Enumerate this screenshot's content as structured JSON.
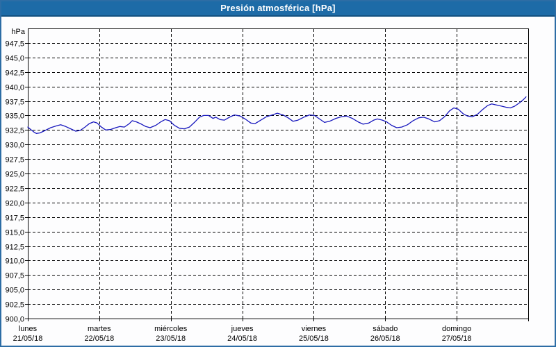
{
  "window": {
    "title": "Presión atmosférica [hPa]"
  },
  "colors": {
    "titlebar": "#1d6ba7",
    "titlebar_edge": "#12507f",
    "window_border": "#2d6da5",
    "background": "#fdfdfe",
    "axis": "#000000",
    "grid": "#000000",
    "line": "#1717bd"
  },
  "chart_data": {
    "type": "line",
    "title": "Presión atmosférica [hPa]",
    "grid": {
      "style": "dashed",
      "color": "#000000"
    },
    "legend": "none",
    "y_axis": {
      "unit": "hPa",
      "min": 900,
      "max": 950,
      "tick_step": 2.5,
      "ticks": [
        {
          "value": 947.5,
          "label": "947,5"
        },
        {
          "value": 945.0,
          "label": "945,0"
        },
        {
          "value": 942.5,
          "label": "942,5"
        },
        {
          "value": 940.0,
          "label": "940,0"
        },
        {
          "value": 937.5,
          "label": "937,5"
        },
        {
          "value": 935.0,
          "label": "935,0"
        },
        {
          "value": 932.5,
          "label": "932,5"
        },
        {
          "value": 930.0,
          "label": "930,0"
        },
        {
          "value": 927.5,
          "label": "927,5"
        },
        {
          "value": 925.0,
          "label": "925,0"
        },
        {
          "value": 922.5,
          "label": "922,5"
        },
        {
          "value": 920.0,
          "label": "920,0"
        },
        {
          "value": 917.5,
          "label": "917,5"
        },
        {
          "value": 915.0,
          "label": "915,0"
        },
        {
          "value": 912.5,
          "label": "912,5"
        },
        {
          "value": 910.0,
          "label": "910,0"
        },
        {
          "value": 907.5,
          "label": "907,5"
        },
        {
          "value": 905.0,
          "label": "905,0"
        },
        {
          "value": 902.5,
          "label": "902,5"
        },
        {
          "value": 900.0,
          "label": "900,0"
        }
      ]
    },
    "x_axis": {
      "span_days": 7,
      "days": [
        {
          "name": "lunes",
          "date": "21/05/18"
        },
        {
          "name": "martes",
          "date": "22/05/18"
        },
        {
          "name": "miércoles",
          "date": "23/05/18"
        },
        {
          "name": "jueves",
          "date": "24/05/18"
        },
        {
          "name": "viernes",
          "date": "25/05/18"
        },
        {
          "name": "sábado",
          "date": "26/05/18"
        },
        {
          "name": "domingo",
          "date": "27/05/18"
        }
      ]
    },
    "series": [
      {
        "name": "Presión atmosférica",
        "color": "#1717bd",
        "points": [
          [
            0.0,
            933.0
          ],
          [
            0.04,
            932.6
          ],
          [
            0.09,
            932.1
          ],
          [
            0.12,
            931.9
          ],
          [
            0.17,
            932.0
          ],
          [
            0.24,
            932.4
          ],
          [
            0.32,
            932.9
          ],
          [
            0.4,
            933.2
          ],
          [
            0.46,
            933.4
          ],
          [
            0.53,
            933.1
          ],
          [
            0.6,
            932.7
          ],
          [
            0.67,
            932.3
          ],
          [
            0.73,
            932.4
          ],
          [
            0.8,
            933.0
          ],
          [
            0.86,
            933.6
          ],
          [
            0.92,
            933.9
          ],
          [
            0.97,
            933.7
          ],
          [
            1.03,
            933.0
          ],
          [
            1.09,
            932.5
          ],
          [
            1.16,
            932.6
          ],
          [
            1.23,
            932.9
          ],
          [
            1.29,
            933.1
          ],
          [
            1.35,
            933.0
          ],
          [
            1.42,
            933.6
          ],
          [
            1.46,
            934.1
          ],
          [
            1.52,
            933.9
          ],
          [
            1.59,
            933.5
          ],
          [
            1.65,
            933.1
          ],
          [
            1.71,
            932.9
          ],
          [
            1.79,
            933.3
          ],
          [
            1.86,
            933.9
          ],
          [
            1.92,
            934.3
          ],
          [
            1.98,
            934.1
          ],
          [
            2.05,
            933.3
          ],
          [
            2.12,
            932.8
          ],
          [
            2.19,
            932.7
          ],
          [
            2.26,
            933.0
          ],
          [
            2.33,
            933.8
          ],
          [
            2.4,
            934.7
          ],
          [
            2.46,
            935.0
          ],
          [
            2.53,
            935.0
          ],
          [
            2.59,
            934.5
          ],
          [
            2.63,
            934.7
          ],
          [
            2.69,
            934.3
          ],
          [
            2.75,
            934.2
          ],
          [
            2.82,
            934.7
          ],
          [
            2.89,
            935.1
          ],
          [
            2.97,
            934.9
          ],
          [
            3.04,
            934.4
          ],
          [
            3.12,
            933.7
          ],
          [
            3.18,
            933.6
          ],
          [
            3.26,
            934.2
          ],
          [
            3.34,
            934.8
          ],
          [
            3.42,
            935.1
          ],
          [
            3.49,
            935.4
          ],
          [
            3.57,
            935.1
          ],
          [
            3.64,
            934.6
          ],
          [
            3.71,
            934.0
          ],
          [
            3.78,
            934.2
          ],
          [
            3.86,
            934.7
          ],
          [
            3.94,
            935.1
          ],
          [
            4.01,
            935.0
          ],
          [
            4.08,
            934.4
          ],
          [
            4.15,
            933.8
          ],
          [
            4.22,
            934.0
          ],
          [
            4.31,
            934.5
          ],
          [
            4.39,
            934.8
          ],
          [
            4.46,
            934.9
          ],
          [
            4.54,
            934.5
          ],
          [
            4.62,
            933.9
          ],
          [
            4.69,
            933.5
          ],
          [
            4.77,
            933.7
          ],
          [
            4.84,
            934.2
          ],
          [
            4.89,
            934.4
          ],
          [
            4.96,
            934.2
          ],
          [
            5.02,
            933.9
          ],
          [
            5.09,
            933.3
          ],
          [
            5.16,
            932.9
          ],
          [
            5.23,
            933.0
          ],
          [
            5.31,
            933.4
          ],
          [
            5.39,
            934.1
          ],
          [
            5.47,
            934.6
          ],
          [
            5.54,
            934.7
          ],
          [
            5.61,
            934.4
          ],
          [
            5.69,
            933.9
          ],
          [
            5.76,
            934.1
          ],
          [
            5.83,
            934.8
          ],
          [
            5.9,
            935.8
          ],
          [
            5.96,
            936.3
          ],
          [
            6.02,
            936.1
          ],
          [
            6.09,
            935.3
          ],
          [
            6.15,
            934.9
          ],
          [
            6.22,
            934.8
          ],
          [
            6.29,
            935.2
          ],
          [
            6.36,
            936.0
          ],
          [
            6.43,
            936.7
          ],
          [
            6.49,
            937.0
          ],
          [
            6.56,
            936.8
          ],
          [
            6.63,
            936.6
          ],
          [
            6.7,
            936.4
          ],
          [
            6.75,
            936.3
          ],
          [
            6.81,
            936.6
          ],
          [
            6.88,
            937.2
          ],
          [
            6.93,
            937.7
          ],
          [
            6.97,
            938.2
          ]
        ]
      }
    ]
  }
}
